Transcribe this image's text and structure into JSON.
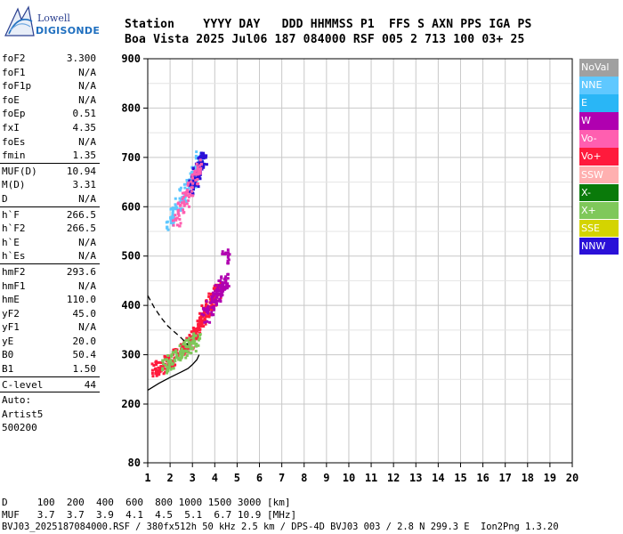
{
  "logo": {
    "lowell": "Lowell",
    "digisonde": "DIGISONDE"
  },
  "header": {
    "line1": "Station    YYYY DAY   DDD HHMMSS P1  FFS S AXN PPS IGA PS",
    "line2": "Boa Vista 2025 Jul06 187 084000 RSF 005 2 713 100 03+ 25"
  },
  "params": {
    "group1": [
      {
        "k": "foF2",
        "v": "3.300"
      },
      {
        "k": "foF1",
        "v": "N/A"
      },
      {
        "k": "foF1p",
        "v": "N/A"
      },
      {
        "k": "foE",
        "v": "N/A"
      },
      {
        "k": "foEp",
        "v": "0.51"
      },
      {
        "k": "fxI",
        "v": "4.35"
      },
      {
        "k": "foEs",
        "v": "N/A"
      },
      {
        "k": "fmin",
        "v": "1.35"
      }
    ],
    "group2": [
      {
        "k": "MUF(D)",
        "v": "10.94"
      },
      {
        "k": "M(D)",
        "v": "3.31"
      },
      {
        "k": "D",
        "v": "N/A"
      }
    ],
    "group3": [
      {
        "k": "h`F",
        "v": "266.5"
      },
      {
        "k": "h`F2",
        "v": "266.5"
      },
      {
        "k": "h`E",
        "v": "N/A"
      },
      {
        "k": "h`Es",
        "v": "N/A"
      }
    ],
    "group4": [
      {
        "k": "hmF2",
        "v": "293.6"
      },
      {
        "k": "hmF1",
        "v": "N/A"
      },
      {
        "k": "hmE",
        "v": "110.0"
      },
      {
        "k": "yF2",
        "v": "45.0"
      },
      {
        "k": "yF1",
        "v": "N/A"
      },
      {
        "k": "yE",
        "v": "20.0"
      },
      {
        "k": "B0",
        "v": "50.4"
      },
      {
        "k": "B1",
        "v": "1.50"
      }
    ],
    "group5": [
      {
        "k": "C-level",
        "v": "44"
      }
    ],
    "auto": [
      "Auto:",
      "Artist5",
      "500200"
    ]
  },
  "legend": [
    {
      "label": "NoVal",
      "color": "#a0a0a0"
    },
    {
      "label": "NNE",
      "color": "#5fc8ff"
    },
    {
      "label": "E",
      "color": "#29b6f6"
    },
    {
      "label": "W",
      "color": "#b000b0"
    },
    {
      "label": "Vo-",
      "color": "#ff5fb0"
    },
    {
      "label": "Vo+",
      "color": "#ff1a3c"
    },
    {
      "label": "SSW",
      "color": "#ffb0b0"
    },
    {
      "label": "X-",
      "color": "#0a7a0a"
    },
    {
      "label": "X+",
      "color": "#7fc85a"
    },
    {
      "label": "SSE",
      "color": "#d4d400"
    },
    {
      "label": "NNW",
      "color": "#2a10d8"
    }
  ],
  "bottom": {
    "line1": "D     100  200  400  600  800 1000 1500 3000 [km]",
    "line2": "MUF   3.7  3.7  3.9  4.1  4.5  5.1  6.7 10.9 [MHz]",
    "line3": "BVJ03_2025187084000.RSF / 380fx512h 50 kHz 2.5 km / DPS-4D BVJ03 003 / 2.8 N 299.3 E  Ion2Png 1.3.20"
  },
  "chart_data": {
    "type": "scatter",
    "title": "",
    "xlabel": "",
    "ylabel": "",
    "xlim": [
      1,
      20
    ],
    "ylim": [
      80,
      900
    ],
    "x_ticks": [
      1,
      2,
      3,
      4,
      5,
      6,
      7,
      8,
      9,
      10,
      11,
      12,
      13,
      14,
      15,
      16,
      17,
      18,
      19,
      20
    ],
    "y_ticks": [
      80,
      200,
      300,
      400,
      500,
      600,
      700,
      800,
      900
    ],
    "grid": true,
    "legend_position": "right",
    "series": [
      {
        "name": "Vo+",
        "color": "#ff1a3c",
        "x": [
          1.35,
          1.5,
          1.7,
          1.9,
          2.1,
          2.3,
          2.5,
          2.7,
          2.9,
          3.0,
          3.1,
          3.2,
          3.3,
          3.4,
          3.5,
          3.6,
          3.7,
          3.8,
          3.9,
          4.0,
          4.1
        ],
        "y": [
          270,
          272,
          276,
          282,
          290,
          298,
          306,
          315,
          326,
          333,
          340,
          347,
          355,
          365,
          375,
          385,
          395,
          405,
          415,
          420,
          430
        ]
      },
      {
        "name": "X+",
        "color": "#7fc85a",
        "x": [
          1.8,
          2.0,
          2.2,
          2.4,
          2.6,
          2.8,
          3.0,
          3.2
        ],
        "y": [
          278,
          285,
          292,
          300,
          308,
          315,
          322,
          330
        ]
      },
      {
        "name": "W",
        "color": "#b000b0",
        "x": [
          3.6,
          3.8,
          4.0,
          4.1,
          4.2,
          4.3,
          4.4,
          4.5,
          4.5
        ],
        "y": [
          380,
          395,
          410,
          420,
          430,
          440,
          445,
          450,
          500
        ]
      },
      {
        "name": "NNE",
        "color": "#5fc8ff",
        "x": [
          2.0,
          2.2,
          2.4,
          2.6,
          2.8,
          3.0,
          3.1,
          3.2,
          3.3
        ],
        "y": [
          565,
          585,
          605,
          625,
          640,
          655,
          665,
          680,
          700
        ]
      },
      {
        "name": "NNW",
        "color": "#2a10d8",
        "x": [
          3.0,
          3.1,
          3.2,
          3.3,
          3.4,
          3.5
        ],
        "y": [
          640,
          655,
          670,
          680,
          690,
          700
        ]
      },
      {
        "name": "Vo-",
        "color": "#ff5fb0",
        "x": [
          2.3,
          2.5,
          2.7,
          2.9,
          3.1,
          3.3
        ],
        "y": [
          575,
          595,
          615,
          635,
          660,
          680
        ]
      }
    ],
    "model_profile": {
      "x": [
        1.0,
        1.5,
        2.0,
        2.5,
        2.8,
        3.0,
        3.2,
        3.3
      ],
      "y": [
        228,
        242,
        254,
        265,
        272,
        280,
        290,
        300
      ]
    },
    "dashed_profile": {
      "x": [
        1.0,
        1.3,
        1.6,
        1.9,
        2.1,
        2.3,
        2.5,
        2.7,
        2.8
      ],
      "y": [
        420,
        395,
        375,
        358,
        350,
        342,
        334,
        325,
        320
      ]
    }
  }
}
